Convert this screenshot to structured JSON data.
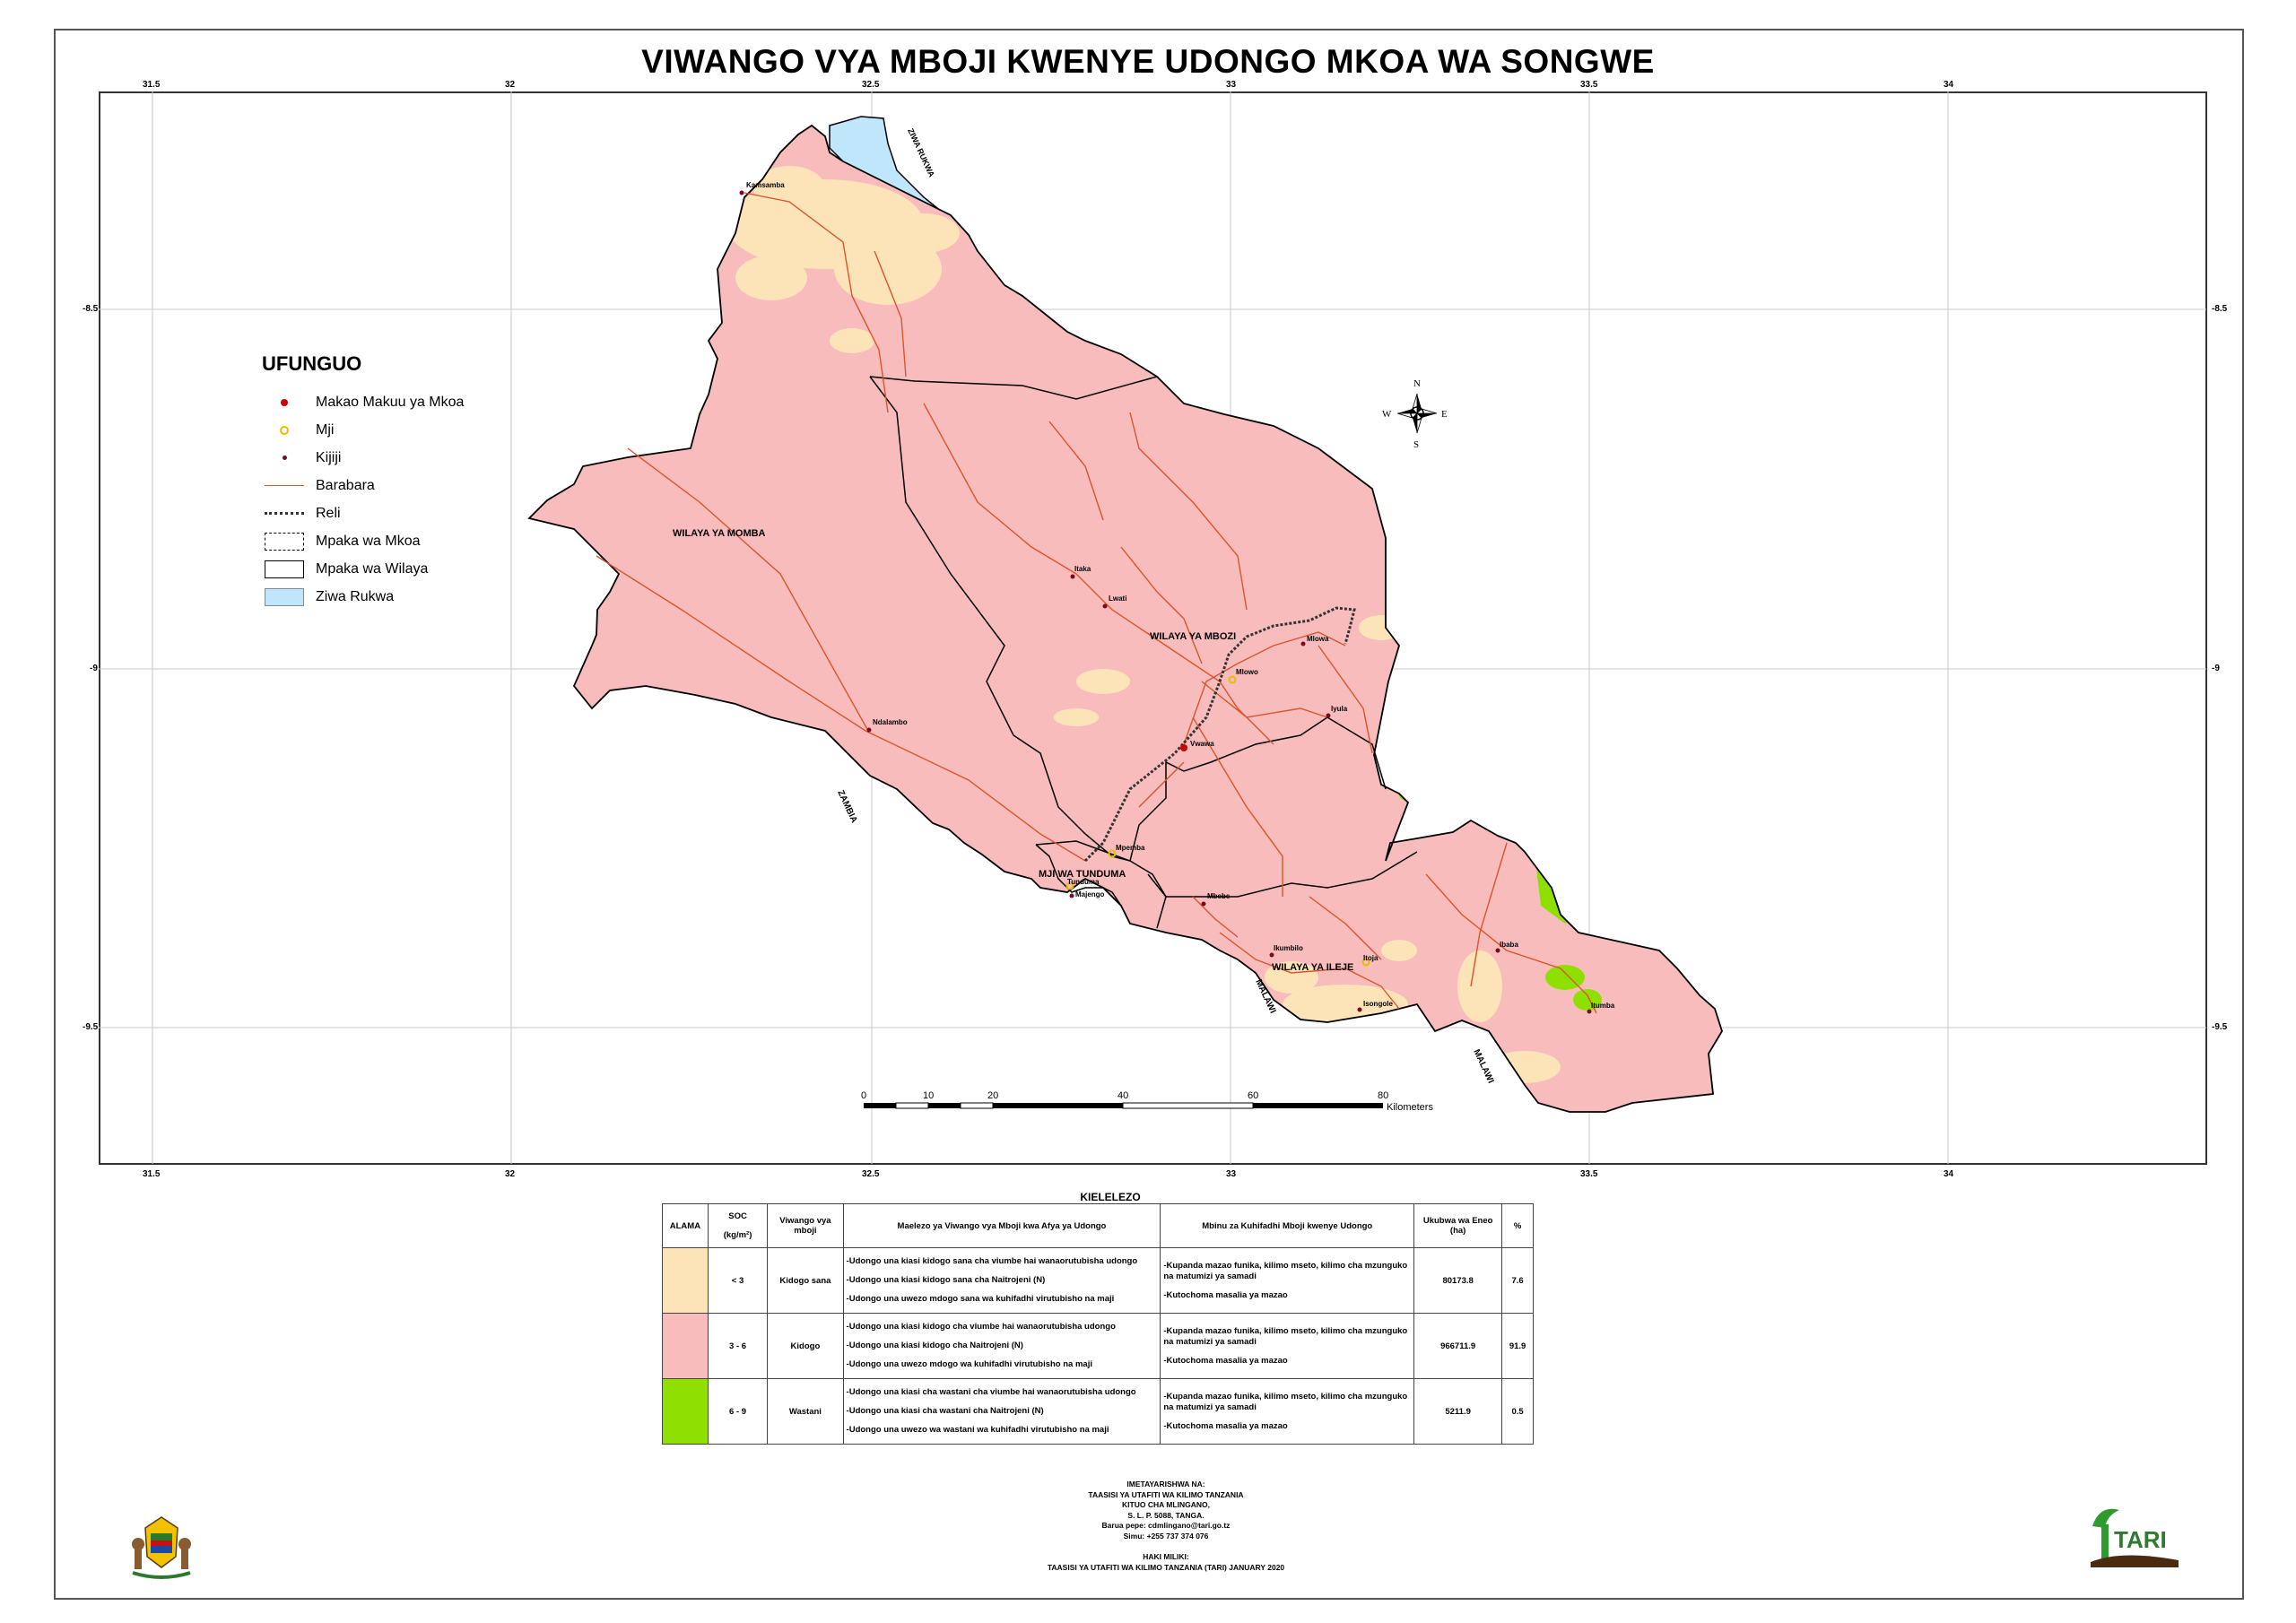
{
  "title": "VIWANGO VYA MBOJI KWENYE UDONGO MKOA WA SONGWE",
  "axes": {
    "x_ticks": [
      "31.5",
      "32",
      "32.5",
      "33",
      "33.5",
      "34"
    ],
    "y_ticks": [
      "-8.5",
      "-9",
      "-9.5"
    ]
  },
  "legend": {
    "title": "UFUNGUO",
    "items": [
      {
        "label": "Makao Makuu ya Mkoa",
        "icon": "regional-hq-dot-icon",
        "color": "#cc0000"
      },
      {
        "label": "Mji",
        "icon": "town-circle-icon",
        "color": "#e0c000"
      },
      {
        "label": "Kijiji",
        "icon": "village-dot-icon",
        "color": "#7a0a20"
      },
      {
        "label": "Barabara",
        "icon": "road-line-icon",
        "color": "#d9552b"
      },
      {
        "label": "Reli",
        "icon": "railway-line-icon",
        "color": "#333333"
      },
      {
        "label": "Mpaka wa Mkoa",
        "icon": "region-boundary-icon",
        "color": "#000000"
      },
      {
        "label": "Mpaka wa Wilaya",
        "icon": "district-boundary-icon",
        "color": "#000000"
      },
      {
        "label": "Ziwa Rukwa",
        "icon": "lake-swatch-icon",
        "color": "#bfe6fb"
      }
    ]
  },
  "map_labels": {
    "ziwa_rukwa": "ZIWA RUKWA",
    "zambia": "ZAMBIA",
    "malawi_1": "MALAWI",
    "malawi_2": "MALAWI",
    "wilaya_momba": "WILAYA YA MOMBA",
    "wilaya_mbozi": "WILAYA YA MBOZI",
    "wilaya_ileje": "WILAYA YA ILEJE",
    "mji_tunduma": "MJI WA TUNDUMA"
  },
  "places": [
    {
      "name": "Kamsamba",
      "kind": "village"
    },
    {
      "name": "Itaka",
      "kind": "village"
    },
    {
      "name": "Lwati",
      "kind": "village"
    },
    {
      "name": "Mlowo",
      "kind": "town"
    },
    {
      "name": "Mlowa",
      "kind": "village"
    },
    {
      "name": "Iyula",
      "kind": "village"
    },
    {
      "name": "Vwawa",
      "kind": "hq"
    },
    {
      "name": "Ndalambo",
      "kind": "village"
    },
    {
      "name": "Mpemba",
      "kind": "town"
    },
    {
      "name": "Tunduma",
      "kind": "town"
    },
    {
      "name": "Majengo",
      "kind": "village"
    },
    {
      "name": "Mbebe",
      "kind": "village"
    },
    {
      "name": "Ikumbilo",
      "kind": "village"
    },
    {
      "name": "Itoja",
      "kind": "town"
    },
    {
      "name": "Isongole",
      "kind": "village"
    },
    {
      "name": "Ibaba",
      "kind": "village"
    },
    {
      "name": "Itumba",
      "kind": "village"
    }
  ],
  "compass": {
    "n": "N",
    "s": "S",
    "e": "E",
    "w": "W"
  },
  "scalebar": {
    "ticks": [
      "0",
      "10",
      "20",
      "40",
      "60",
      "80"
    ],
    "unit": "Kilometers"
  },
  "colors": {
    "low": "#fce3b8",
    "medium": "#f9bcbc",
    "high": "#8fe000",
    "lake": "#bfe6fb"
  },
  "table": {
    "title": "KIELELEZO",
    "headers": {
      "alama": "ALAMA",
      "soc": "SOC",
      "soc_unit": "(kg/m²)",
      "viwango": "Viwango vya mboji",
      "maelezo": "Maelezo ya Viwango vya Mboji kwa Afya ya Udongo",
      "mbinu": "Mbinu za Kuhifadhi Mboji kwenye Udongo",
      "ukubwa": "Ukubwa wa Eneo (ha)",
      "percent": "%"
    },
    "rows": [
      {
        "color": "#fce3b8",
        "soc": "< 3",
        "level": "Kidogo sana",
        "desc": [
          "-Udongo una kiasi kidogo sana cha viumbe hai wanaorutubisha udongo",
          "-Udongo una kiasi kidogo sana cha Naitrojeni (N)",
          "-Udongo una uwezo mdogo sana wa kuhifadhi virutubisho na maji"
        ],
        "methods": [
          "-Kupanda mazao funika, kilimo mseto, kilimo cha mzunguko na matumizi ya samadi",
          "-Kutochoma masalia ya mazao"
        ],
        "area": "80173.8",
        "pct": "7.6"
      },
      {
        "color": "#f9bcbc",
        "soc": "3 - 6",
        "level": "Kidogo",
        "desc": [
          "-Udongo una kiasi kidogo cha viumbe hai wanaorutubisha udongo",
          "-Udongo una kiasi kidogo cha Naitrojeni (N)",
          "-Udongo una uwezo mdogo wa kuhifadhi virutubisho na maji"
        ],
        "methods": [
          "-Kupanda mazao funika, kilimo mseto, kilimo cha mzunguko na matumizi ya samadi",
          "-Kutochoma masalia ya mazao"
        ],
        "area": "966711.9",
        "pct": "91.9"
      },
      {
        "color": "#8fe000",
        "soc": "6 - 9",
        "level": "Wastani",
        "desc": [
          "-Udongo una kiasi cha wastani cha viumbe hai wanaorutubisha udongo",
          "-Udongo una kiasi cha wastani cha Naitrojeni (N)",
          "-Udongo una uwezo wa wastani wa kuhifadhi virutubisho na maji"
        ],
        "methods": [
          "-Kupanda mazao funika, kilimo mseto, kilimo cha mzunguko na matumizi ya samadi",
          "-Kutochoma masalia ya mazao"
        ],
        "area": "5211.9",
        "pct": "0.5"
      }
    ]
  },
  "credits": {
    "l1": "IMETAYARISHWA NA:",
    "l2": "TAASISI YA UTAFITI WA KILIMO TANZANIA",
    "l3": "KITUO CHA MLINGANO,",
    "l4": "S. L. P. 5088, TANGA.",
    "l5": "Barua pepe: cdmlingano@tari.go.tz",
    "l6": "Simu: +255 737 374 076",
    "l7": "HAKI MILIKI:",
    "l8": "TAASISI YA UTAFITI WA KILIMO TANZANIA (TARI) JANUARY 2020"
  },
  "logos": {
    "tari": "TARI"
  }
}
